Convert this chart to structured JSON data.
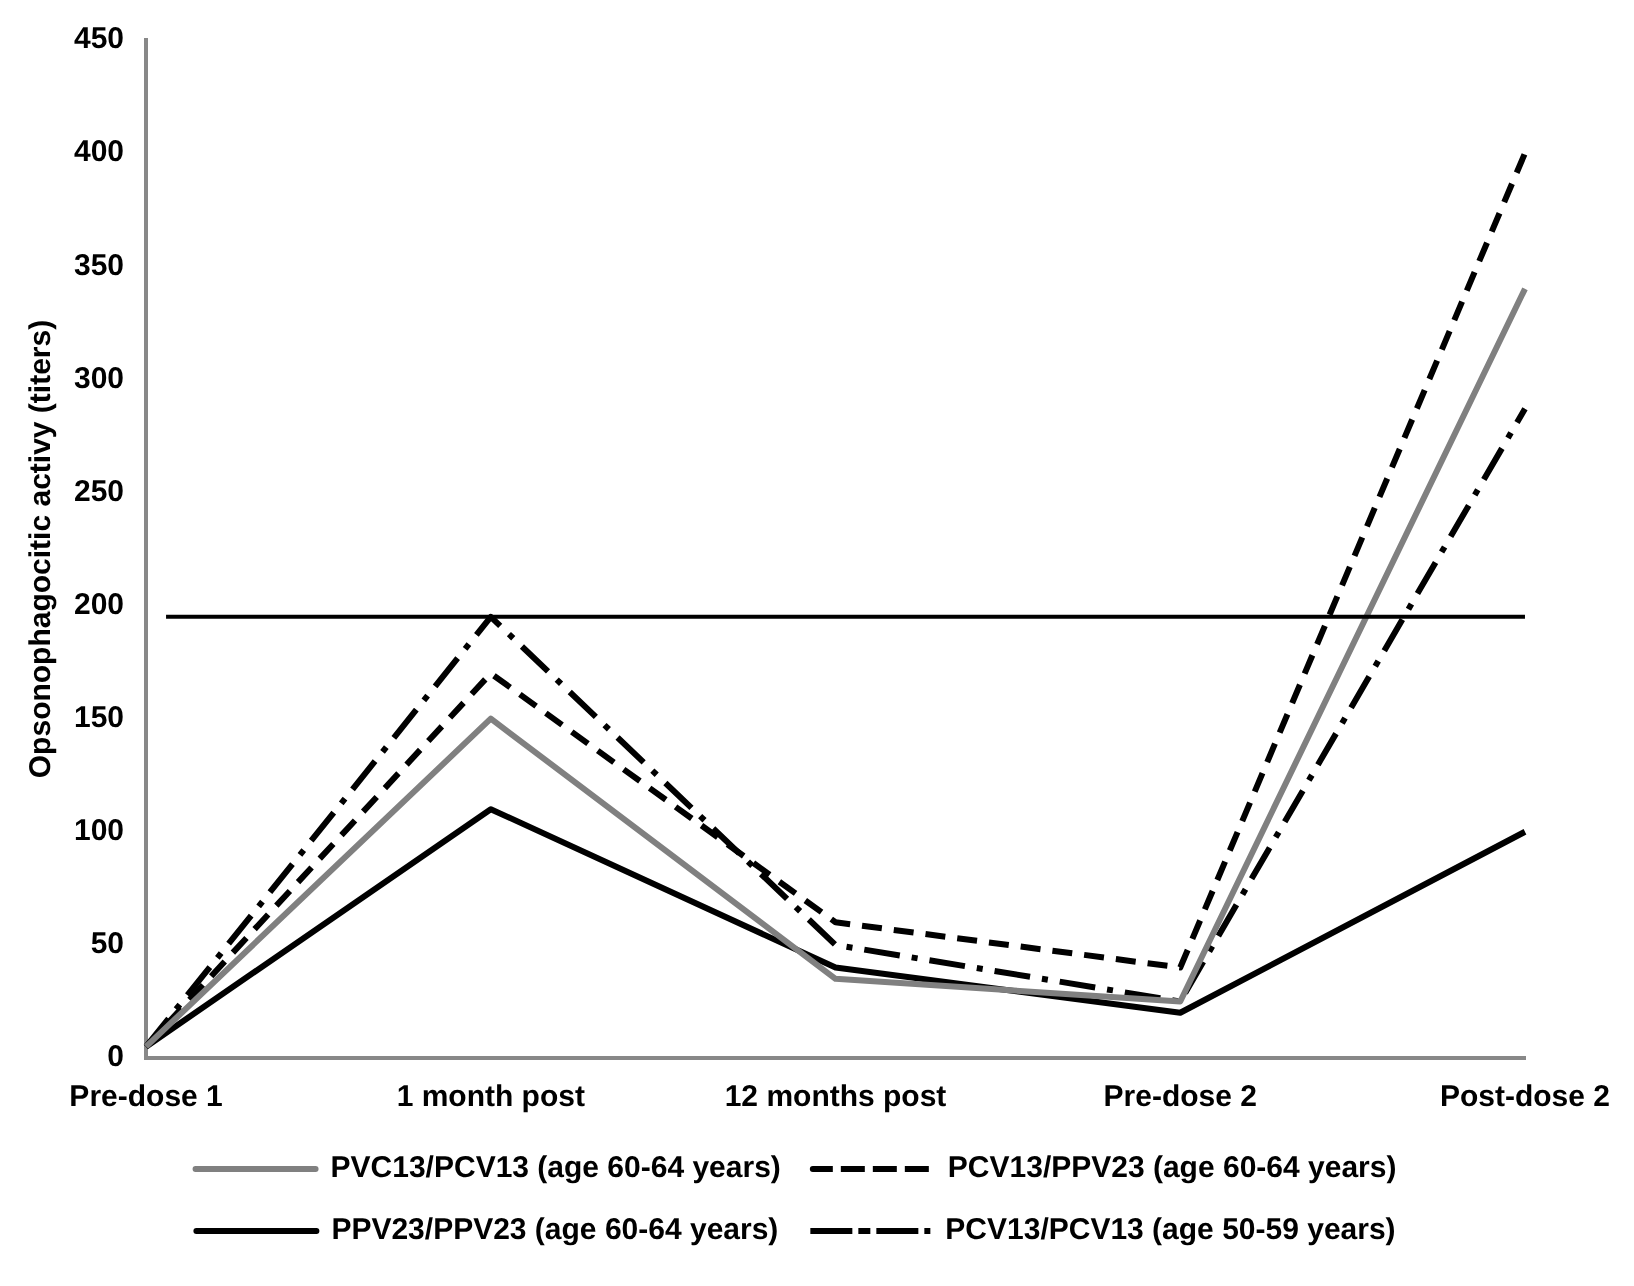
{
  "chart_data": {
    "type": "line",
    "ylabel": "Opsonophagocitic activy (titers)",
    "categories": [
      "Pre-dose 1",
      "1 month post",
      "12 months post",
      "Pre-dose 2",
      "Post-dose 2"
    ],
    "series": [
      {
        "name": "PVC13/PCV13 (age 60-64 years)",
        "color": "#808080",
        "line_style": "solid",
        "values": [
          5,
          150,
          35,
          25,
          340
        ]
      },
      {
        "name": "PCV13/PPV23 (age 60-64 years)",
        "color": "#000000",
        "line_style": "dashed",
        "values": [
          5,
          170,
          60,
          40,
          400
        ]
      },
      {
        "name": "PPV23/PPV23 (age 60-64 years)",
        "color": "#000000",
        "line_style": "solid",
        "values": [
          5,
          110,
          40,
          20,
          100
        ]
      },
      {
        "name": "PCV13/PCV13 (age 50-59 years)",
        "color": "#000000",
        "line_style": "dashdot",
        "values": [
          5,
          195,
          50,
          25,
          287
        ]
      }
    ],
    "ylim": [
      0,
      450
    ],
    "yticks": [
      0,
      50,
      100,
      150,
      200,
      250,
      300,
      350,
      400,
      450
    ],
    "ref_lines": [
      {
        "axis": "y",
        "value": 195,
        "color": "#000000"
      }
    ],
    "grid": false,
    "legend": "bottom",
    "marker": "none"
  }
}
